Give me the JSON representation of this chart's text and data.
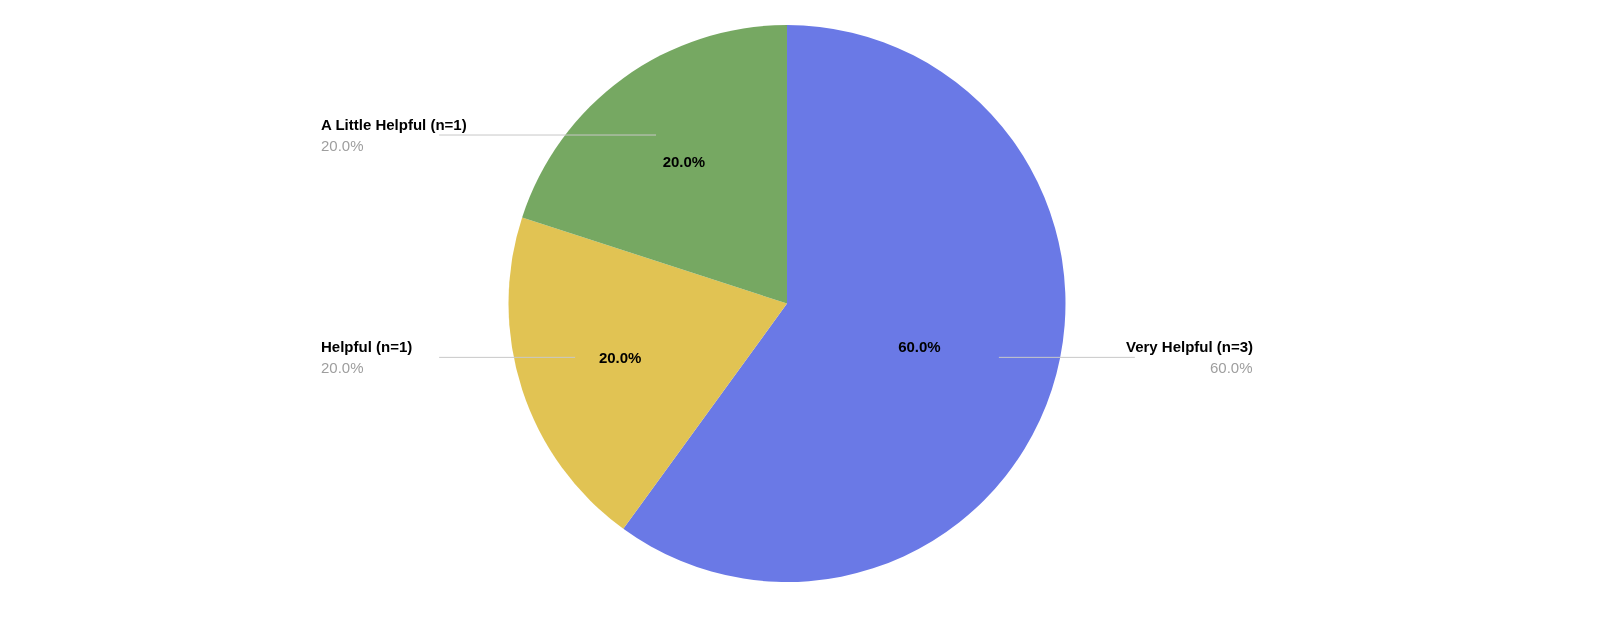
{
  "chart_data": {
    "type": "pie",
    "categories": [
      "Very Helpful (n=3)",
      "Helpful (n=1)",
      "A Little Helpful (n=1)"
    ],
    "values": [
      60,
      20,
      20
    ],
    "colors": [
      "#6a79e6",
      "#e1c353",
      "#76a862"
    ],
    "value_labels": [
      "60.0%",
      "20.0%",
      "20.0%"
    ]
  }
}
